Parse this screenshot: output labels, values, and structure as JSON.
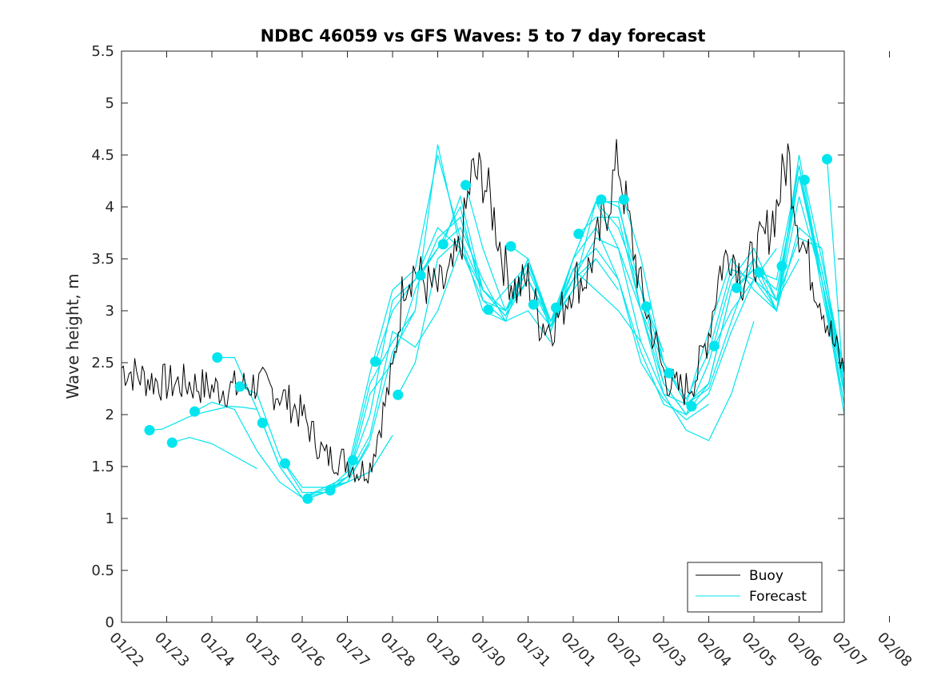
{
  "chart_data": {
    "type": "line",
    "title": "NDBC 46059 vs GFS Waves: 5 to 7 day forecast",
    "xlabel": "",
    "ylabel": "Wave height, m",
    "ylim": [
      0,
      5.5
    ],
    "yticks": [
      "0",
      "0.5",
      "1",
      "1.5",
      "2",
      "2.5",
      "3",
      "3.5",
      "4",
      "4.5",
      "5",
      "5.5"
    ],
    "xlim": [
      0,
      16
    ],
    "xticks": [
      "01/22",
      "01/23",
      "01/24",
      "01/25",
      "01/26",
      "01/27",
      "01/28",
      "01/29",
      "01/30",
      "01/31",
      "02/01",
      "02/02",
      "02/03",
      "02/04",
      "02/05",
      "02/06",
      "02/07",
      "02/08"
    ],
    "legend": {
      "position": "bottom-right",
      "entries": [
        "Buoy",
        "Forecast"
      ]
    },
    "colors": {
      "buoy": "#000000",
      "forecast": "#00e5ee"
    },
    "buoy": {
      "name": "Buoy",
      "x": [
        0,
        0.5,
        1,
        1.5,
        2,
        2.5,
        3,
        3.25,
        3.5,
        4,
        4.25,
        4.5,
        5,
        5.25,
        5.5,
        5.75,
        6,
        6.25,
        6.5,
        6.75,
        7,
        7.25,
        7.5,
        7.75,
        8,
        8.25,
        8.5,
        8.75,
        9,
        9.25,
        9.5,
        9.75,
        10,
        10.25,
        10.5,
        10.75,
        11,
        11.25,
        11.5,
        11.75,
        12,
        12.25,
        12.5,
        12.75,
        13,
        13.25,
        13.5,
        13.75,
        14,
        14.25,
        14.5,
        14.75,
        15,
        15.25,
        15.5,
        15.75,
        16
      ],
      "y": [
        2.45,
        2.35,
        2.3,
        2.3,
        2.25,
        2.25,
        2.3,
        2.25,
        2.2,
        2.0,
        1.8,
        1.6,
        1.55,
        1.45,
        1.5,
        1.95,
        2.4,
        3.3,
        3.4,
        3.25,
        3.2,
        3.3,
        3.6,
        4.3,
        4.3,
        3.9,
        3.4,
        3.2,
        3.3,
        2.9,
        2.85,
        3.0,
        3.3,
        3.3,
        3.6,
        4.0,
        4.45,
        3.8,
        3.2,
        2.8,
        2.4,
        2.25,
        2.25,
        2.4,
        2.8,
        3.4,
        3.6,
        3.3,
        3.5,
        3.7,
        4.0,
        4.5,
        3.8,
        3.4,
        3.1,
        2.7,
        2.4
      ]
    },
    "forecast_markers": {
      "name": "Forecast",
      "x": [
        0.62,
        1.12,
        1.62,
        2.12,
        2.62,
        3.12,
        3.62,
        4.12,
        4.62,
        5.12,
        5.62,
        6.12,
        6.62,
        7.12,
        7.62,
        8.12,
        8.62,
        9.12,
        9.62,
        10.12,
        10.62,
        11.12,
        11.62,
        12.12,
        12.62,
        13.12,
        13.62,
        14.12,
        14.62,
        15.12,
        15.62
      ],
      "y": [
        1.85,
        1.73,
        2.03,
        2.55,
        2.27,
        1.92,
        1.53,
        1.19,
        1.27,
        1.56,
        2.51,
        2.19,
        3.34,
        3.64,
        4.21,
        3.01,
        3.62,
        3.06,
        3.03,
        3.74,
        4.07,
        4.07,
        3.04,
        2.4,
        2.08,
        2.66,
        3.22,
        3.37,
        3.43,
        4.26,
        4.46
      ]
    },
    "forecast_series": [
      {
        "x": [
          0.62,
          0.9,
          1.2,
          1.5,
          1.8,
          2.1,
          2.4,
          2.7,
          3.0
        ],
        "y": [
          1.85,
          1.86,
          1.92,
          1.98,
          2.02,
          2.05,
          2.08,
          2.07,
          2.05
        ]
      },
      {
        "x": [
          1.12,
          1.5,
          2.0,
          2.5,
          3.0
        ],
        "y": [
          1.73,
          1.78,
          1.72,
          1.6,
          1.48
        ]
      },
      {
        "x": [
          1.62,
          2.0,
          2.5,
          3.0,
          3.5,
          4.0,
          4.5,
          5.0,
          5.5
        ],
        "y": [
          2.03,
          2.12,
          2.05,
          1.65,
          1.35,
          1.2,
          1.28,
          1.35,
          1.72
        ]
      },
      {
        "x": [
          2.12,
          2.5,
          3.0,
          3.5,
          4.0,
          4.5,
          5.0,
          5.5,
          6.0
        ],
        "y": [
          2.55,
          2.55,
          2.05,
          1.5,
          1.2,
          1.3,
          1.35,
          1.45,
          1.8
        ]
      },
      {
        "x": [
          2.62,
          3.0,
          3.5,
          4.0,
          4.5,
          5.0,
          5.5,
          6.0,
          6.5
        ],
        "y": [
          2.27,
          2.2,
          1.6,
          1.25,
          1.25,
          1.35,
          1.75,
          2.6,
          3.0
        ]
      },
      {
        "x": [
          3.12,
          3.5,
          4.0,
          4.5,
          5.0,
          5.5,
          6.0,
          6.5,
          7.0,
          7.5
        ],
        "y": [
          1.92,
          1.5,
          1.2,
          1.25,
          1.4,
          1.8,
          2.8,
          2.65,
          3.0,
          3.6
        ]
      },
      {
        "x": [
          3.62,
          4.0,
          4.5,
          5.0,
          5.5,
          6.0,
          6.5,
          7.0,
          7.5,
          8.0
        ],
        "y": [
          1.53,
          1.3,
          1.3,
          1.4,
          2.0,
          3.1,
          3.3,
          3.8,
          3.6,
          3.2
        ]
      },
      {
        "x": [
          4.12,
          4.5,
          5.0,
          5.5,
          6.0,
          6.5,
          7.0,
          7.5,
          8.0,
          8.5
        ],
        "y": [
          1.19,
          1.25,
          1.45,
          2.4,
          3.2,
          3.4,
          4.5,
          3.7,
          3.0,
          2.9
        ]
      },
      {
        "x": [
          4.62,
          5.0,
          5.5,
          6.0,
          6.5,
          7.0,
          7.5,
          8.0,
          8.5,
          9.0,
          9.5
        ],
        "y": [
          1.27,
          1.4,
          2.3,
          2.7,
          3.0,
          4.6,
          3.6,
          3.1,
          2.9,
          3.0,
          2.7
        ]
      },
      {
        "x": [
          5.12,
          5.5,
          6.0,
          6.5,
          7.0,
          7.5,
          8.0,
          8.5,
          9.0,
          9.5,
          10.0
        ],
        "y": [
          1.56,
          2.2,
          2.5,
          3.2,
          3.7,
          3.9,
          3.2,
          3.0,
          3.4,
          2.9,
          3.3
        ]
      },
      {
        "x": [
          5.62,
          6.0,
          6.5,
          7.0,
          7.5,
          8.0,
          8.5,
          9.0,
          9.5,
          10.0,
          10.5
        ],
        "y": [
          2.51,
          3.0,
          3.3,
          3.6,
          4.0,
          3.1,
          3.0,
          3.3,
          2.9,
          3.2,
          3.5
        ]
      },
      {
        "x": [
          6.12,
          6.5,
          7.0,
          7.5,
          8.0,
          8.5,
          9.0,
          9.5,
          10.0,
          10.5,
          11.0
        ],
        "y": [
          2.19,
          2.5,
          3.5,
          3.7,
          3.2,
          2.95,
          3.3,
          2.85,
          3.3,
          3.5,
          3.2
        ]
      },
      {
        "x": [
          6.62,
          7.0,
          7.5,
          8.0,
          8.5,
          9.0,
          9.5,
          10.0,
          10.5,
          11.0,
          11.5
        ],
        "y": [
          3.34,
          3.6,
          3.8,
          3.3,
          2.9,
          3.5,
          2.8,
          3.4,
          3.2,
          3.0,
          2.7
        ]
      },
      {
        "x": [
          7.12,
          7.5,
          8.0,
          8.5,
          9.0,
          9.5,
          10.0,
          10.5,
          11.0,
          11.5,
          12.0
        ],
        "y": [
          3.64,
          4.1,
          3.2,
          2.95,
          3.5,
          2.85,
          3.5,
          4.05,
          3.8,
          3.2,
          2.6
        ]
      },
      {
        "x": [
          7.62,
          8.0,
          8.5,
          9.0,
          9.5,
          10.0,
          10.5,
          11.0,
          11.5,
          12.0,
          12.5
        ],
        "y": [
          4.21,
          3.6,
          3.0,
          3.5,
          2.8,
          3.5,
          4.05,
          3.6,
          2.7,
          2.2,
          2.1
        ]
      },
      {
        "x": [
          8.12,
          8.5,
          9.0,
          9.5,
          10.0,
          10.5,
          11.0,
          11.5,
          12.0,
          12.5,
          13.0
        ],
        "y": [
          3.01,
          3.2,
          3.45,
          2.9,
          3.5,
          3.8,
          3.3,
          2.6,
          2.1,
          2.0,
          2.2
        ]
      },
      {
        "x": [
          8.62,
          9.0,
          9.5,
          10.0,
          10.5,
          11.0,
          11.5,
          12.0,
          12.5,
          13.0
        ],
        "y": [
          3.62,
          3.5,
          2.9,
          3.4,
          3.6,
          3.3,
          2.5,
          2.15,
          1.95,
          2.1
        ]
      },
      {
        "x": [
          9.12,
          9.5,
          10.0,
          10.5,
          11.0,
          11.5,
          12.0,
          12.5,
          13.0,
          13.5,
          14.0
        ],
        "y": [
          3.06,
          2.85,
          3.2,
          4.05,
          4.05,
          3.0,
          2.2,
          1.85,
          1.75,
          2.2,
          2.9
        ]
      },
      {
        "x": [
          9.62,
          10.0,
          10.5,
          11.0,
          11.5,
          12.0,
          12.5,
          13.0,
          13.5,
          14.0,
          14.5
        ],
        "y": [
          3.03,
          3.3,
          3.7,
          3.6,
          3.0,
          2.3,
          2.0,
          2.2,
          2.8,
          3.3,
          3.6
        ]
      },
      {
        "x": [
          10.12,
          10.5,
          11.0,
          11.5,
          12.0,
          12.5,
          13.0,
          13.5,
          14.0,
          14.5,
          15.0
        ],
        "y": [
          3.74,
          3.9,
          3.9,
          3.0,
          2.5,
          2.1,
          2.25,
          2.9,
          3.5,
          3.1,
          3.5
        ]
      },
      {
        "x": [
          10.62,
          11.0,
          11.5,
          12.0,
          12.5,
          13.0,
          13.5,
          14.0,
          14.5,
          15.0,
          15.5
        ],
        "y": [
          4.07,
          4.0,
          3.2,
          2.3,
          2.0,
          2.5,
          3.3,
          3.6,
          3.1,
          3.7,
          3.6
        ]
      },
      {
        "x": [
          11.12,
          11.5,
          12.0,
          12.5,
          13.0,
          13.5,
          14.0,
          14.5,
          15.0,
          15.5,
          16.0
        ],
        "y": [
          4.07,
          3.5,
          2.5,
          2.1,
          2.3,
          3.2,
          3.5,
          3.0,
          3.8,
          3.6,
          2.2
        ]
      },
      {
        "x": [
          11.62,
          12.0,
          12.5,
          13.0,
          13.5,
          14.0,
          14.5,
          15.0,
          15.5,
          16.0
        ],
        "y": [
          3.04,
          2.5,
          2.15,
          2.6,
          3.4,
          3.3,
          3.0,
          4.1,
          3.3,
          2.3
        ]
      },
      {
        "x": [
          12.12,
          12.5,
          13.0,
          13.5,
          14.0,
          14.5,
          15.0,
          15.5,
          16.0
        ],
        "y": [
          2.4,
          2.1,
          2.8,
          3.5,
          3.2,
          3.0,
          4.3,
          3.4,
          2.4
        ]
      },
      {
        "x": [
          12.62,
          13.0,
          13.5,
          14.0,
          14.5,
          15.0,
          15.5,
          16.0
        ],
        "y": [
          2.08,
          2.3,
          3.2,
          3.4,
          3.0,
          4.5,
          3.3,
          2.1
        ]
      },
      {
        "x": [
          13.12,
          13.5,
          14.0,
          14.5,
          15.0,
          15.5,
          16.0
        ],
        "y": [
          2.66,
          3.0,
          3.3,
          3.1,
          4.4,
          3.2,
          2.1
        ]
      },
      {
        "x": [
          13.62,
          14.0,
          14.5,
          15.0,
          15.5,
          16.0
        ],
        "y": [
          3.22,
          3.4,
          3.2,
          4.3,
          3.3,
          2.2
        ]
      },
      {
        "x": [
          14.12,
          14.5,
          15.0,
          15.5,
          16.0
        ],
        "y": [
          3.37,
          3.3,
          4.4,
          3.3,
          2.0
        ]
      },
      {
        "x": [
          14.62,
          15.0,
          15.5,
          16.0
        ],
        "y": [
          3.43,
          4.3,
          3.4,
          2.3
        ]
      },
      {
        "x": [
          15.12,
          15.5,
          16.0
        ],
        "y": [
          4.26,
          3.5,
          2.4
        ]
      },
      {
        "x": [
          15.62,
          16.0
        ],
        "y": [
          4.46,
          2.2
        ]
      }
    ]
  }
}
